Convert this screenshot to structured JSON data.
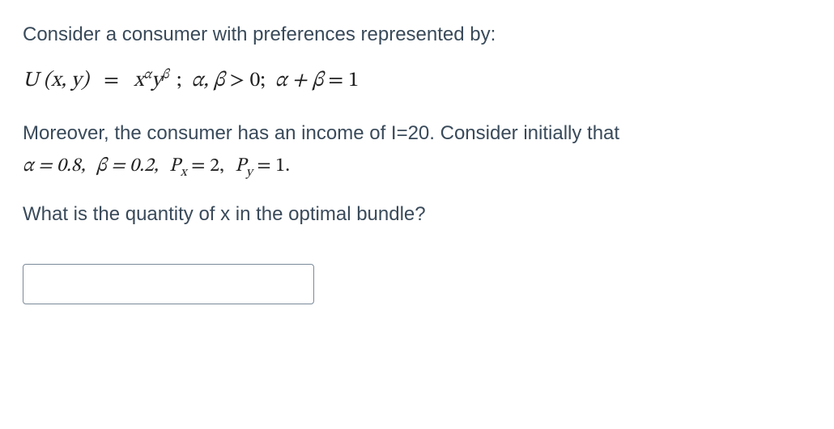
{
  "text": {
    "intro": "Consider a consumer with preferences represented by:",
    "para2_a": "Moreover, the consumer has an income of I=20. Consider initially that",
    "question": "What is the quantity of x in the optimal bundle?"
  },
  "math": {
    "utility_lhs": "U (x, y)",
    "eq": "=",
    "x": "x",
    "y": "y",
    "alpha": "α",
    "beta": "β",
    "sep": ";",
    "cond1_left": "α, β",
    "gt": ">",
    "zero": "0",
    "cond2_left": "α + β",
    "one": "1",
    "alpha_val": "α = 0.8,",
    "beta_val": "β = 0.2,",
    "Px_label": "P",
    "Px_sub": "x",
    "Px_val": "= 2,",
    "Py_label": "P",
    "Py_sub": "y",
    "Py_val": "= 1."
  },
  "input": {
    "placeholder": ""
  },
  "colors": {
    "text": "#394a5a",
    "math": "#222222",
    "border": "#7a8a99",
    "background": "#ffffff"
  }
}
